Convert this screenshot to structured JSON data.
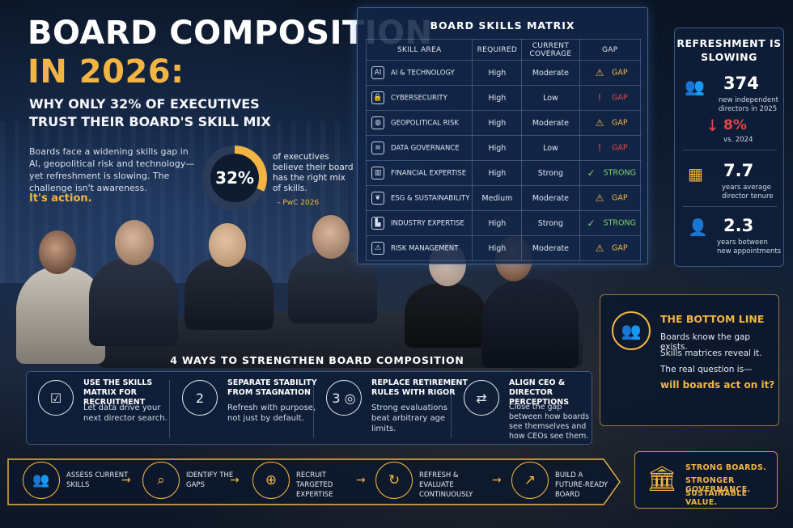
{
  "header": {
    "title_line1": "BOARD COMPOSITION",
    "title_line2": "IN 2026:",
    "subtitle": "WHY ONLY 32% OF EXECUTIVES TRUST THEIR BOARD'S SKILL MIX",
    "intro": "Boards face a widening skills gap in AI, geopolitical risk and technology—yet refreshment is slowing. The challenge isn't awareness.",
    "intro_accent": "It's action."
  },
  "stat": {
    "value": "32%",
    "fraction": 0.32,
    "text": "of executives believe their board has the right mix of skills.",
    "source": "– PwC 2026"
  },
  "matrix": {
    "title": "BOARD SKILLS MATRIX",
    "headers": [
      "SKILL AREA",
      "REQUIRED",
      "CURRENT COVERAGE",
      "GAP"
    ],
    "rows": [
      {
        "icon": "ai-chip-icon",
        "glyph": "AI",
        "skill": "AI & TECHNOLOGY",
        "required": "High",
        "coverage": "Moderate",
        "gap": "GAP",
        "status": "warn"
      },
      {
        "icon": "lock-icon",
        "glyph": "🔒",
        "skill": "CYBERSECURITY",
        "required": "High",
        "coverage": "Low",
        "gap": "GAP",
        "status": "bad"
      },
      {
        "icon": "globe-icon",
        "glyph": "◍",
        "skill": "GEOPOLITICAL RISK",
        "required": "High",
        "coverage": "Moderate",
        "gap": "GAP",
        "status": "warn"
      },
      {
        "icon": "database-icon",
        "glyph": "≡",
        "skill": "DATA GOVERNANCE",
        "required": "High",
        "coverage": "Low",
        "gap": "GAP",
        "status": "bad"
      },
      {
        "icon": "bar-chart-icon",
        "glyph": "▥",
        "skill": "FINANCIAL EXPERTISE",
        "required": "High",
        "coverage": "Strong",
        "gap": "STRONG",
        "status": "good"
      },
      {
        "icon": "leaf-icon",
        "glyph": "❦",
        "skill": "ESG & SUSTAINABILITY",
        "required": "Medium",
        "coverage": "Moderate",
        "gap": "GAP",
        "status": "warn"
      },
      {
        "icon": "factory-icon",
        "glyph": "▙",
        "skill": "INDUSTRY EXPERTISE",
        "required": "High",
        "coverage": "Strong",
        "gap": "STRONG",
        "status": "good"
      },
      {
        "icon": "warning-icon",
        "glyph": "⚠",
        "skill": "RISK MANAGEMENT",
        "required": "High",
        "coverage": "Moderate",
        "gap": "GAP",
        "status": "warn"
      }
    ]
  },
  "refreshment": {
    "title": "REFRESHMENT IS SLOWING",
    "items": [
      {
        "icon": "people-group-icon",
        "glyph": "👥",
        "value": "374",
        "text": "new independent directors in 2025"
      },
      {
        "icon": "down-arrow-icon",
        "glyph": "↓",
        "value": "8%",
        "text": "vs. 2024"
      },
      {
        "icon": "calendar-icon",
        "glyph": "▦",
        "value": "7.7",
        "text": "years average director tenure"
      },
      {
        "icon": "person-clock-icon",
        "glyph": "👤",
        "value": "2.3",
        "text": "years between new appointments"
      }
    ]
  },
  "bottom_line": {
    "title": "THE BOTTOM LINE",
    "lines": [
      "Boards know the gap exists.",
      "Skills matrices reveal it.",
      "The real question is—"
    ],
    "question": "will boards act on it?"
  },
  "ways": {
    "title": "4 WAYS TO STRENGTHEN BOARD COMPOSITION",
    "items": [
      {
        "icon": "clipboard-checklist-icon",
        "glyph": "☑",
        "title": "USE THE SKILLS MATRIX FOR RECRUITMENT",
        "body": "Let data drive your next director search."
      },
      {
        "icon": "number-two-people-icon",
        "glyph": "2",
        "title": "SEPARATE STABILITY FROM STAGNATION",
        "body": "Refresh with purpose, not just by default."
      },
      {
        "icon": "target-icon",
        "glyph": "3 ◎",
        "title": "REPLACE RETIREMENT RULES WITH RIGOR",
        "body": "Strong evaluations beat arbitrary age limits."
      },
      {
        "icon": "handshake-icon",
        "glyph": "⇄",
        "title": "ALIGN CEO & DIRECTOR PERCEPTIONS",
        "body": "Close the gap between how boards see themselves and how CEOs see them."
      }
    ]
  },
  "process": {
    "steps": [
      {
        "icon": "people-assess-icon",
        "glyph": "👥",
        "label": "ASSESS CURRENT SKILLS"
      },
      {
        "icon": "magnifier-icon",
        "glyph": "⌕",
        "label": "IDENTIFY THE GAPS"
      },
      {
        "icon": "add-person-icon",
        "glyph": "⊕",
        "label": "RECRUIT TARGETED EXPERTISE"
      },
      {
        "icon": "refresh-people-icon",
        "glyph": "↻",
        "label": "REFRESH & EVALUATE CONTINUOUSLY"
      },
      {
        "icon": "growth-chart-icon",
        "glyph": "↗",
        "label": "BUILD A FUTURE-READY BOARD"
      }
    ]
  },
  "closing": {
    "icon": "institution-icon",
    "glyph": "🏛",
    "lines": [
      "STRONG BOARDS.",
      "STRONGER GOVERNANCE.",
      "SUSTAINABLE VALUE."
    ]
  },
  "colors": {
    "accent": "#f2b544",
    "warn": "#f2b544",
    "bad": "#e24646",
    "good": "#7bd36a",
    "panel": "#12264a"
  }
}
